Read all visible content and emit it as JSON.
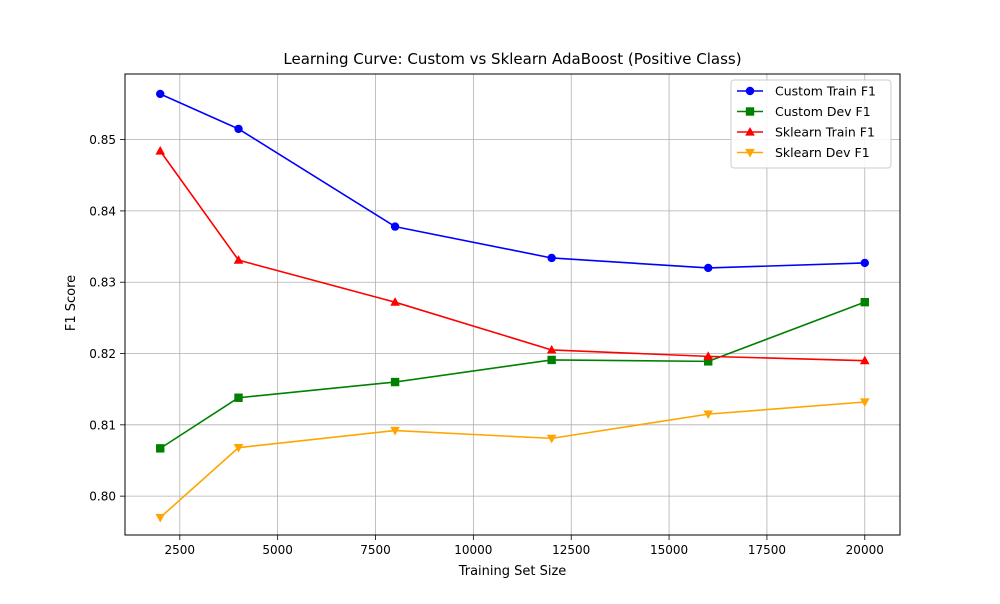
{
  "chart_data": {
    "type": "line",
    "title": "Learning Curve: Custom vs Sklearn AdaBoost (Positive Class)",
    "xlabel": "Training Set Size",
    "ylabel": "F1 Score",
    "xlim": [
      1100,
      20900
    ],
    "ylim": [
      0.79455,
      0.8592
    ],
    "x_ticks": [
      2500,
      5000,
      7500,
      10000,
      12500,
      15000,
      17500,
      20000
    ],
    "y_ticks": [
      0.8,
      0.81,
      0.82,
      0.83,
      0.84,
      0.85
    ],
    "x_tick_labels": [
      "2500",
      "5000",
      "7500",
      "10000",
      "12500",
      "15000",
      "17500",
      "20000"
    ],
    "y_tick_labels": [
      "0.80",
      "0.81",
      "0.82",
      "0.83",
      "0.84",
      "0.85"
    ],
    "grid": true,
    "legend_position": "top-right",
    "x": [
      2000,
      4000,
      8000,
      12000,
      16000,
      20000
    ],
    "series": [
      {
        "name": "Custom Train F1",
        "color": "#0000ff",
        "marker": "circle",
        "values": [
          0.8564,
          0.8515,
          0.8378,
          0.8334,
          0.832,
          0.8327
        ]
      },
      {
        "name": "Custom Dev F1",
        "color": "#008000",
        "marker": "square",
        "values": [
          0.8067,
          0.8138,
          0.816,
          0.8191,
          0.8189,
          0.8272
        ]
      },
      {
        "name": "Sklearn Train F1",
        "color": "#ff0000",
        "marker": "triangle-up",
        "values": [
          0.8484,
          0.8331,
          0.8272,
          0.8205,
          0.8196,
          0.819
        ]
      },
      {
        "name": "Sklearn Dev F1",
        "color": "#ffa500",
        "marker": "triangle-down",
        "values": [
          0.797,
          0.8068,
          0.8092,
          0.8081,
          0.8115,
          0.8132
        ]
      }
    ]
  }
}
